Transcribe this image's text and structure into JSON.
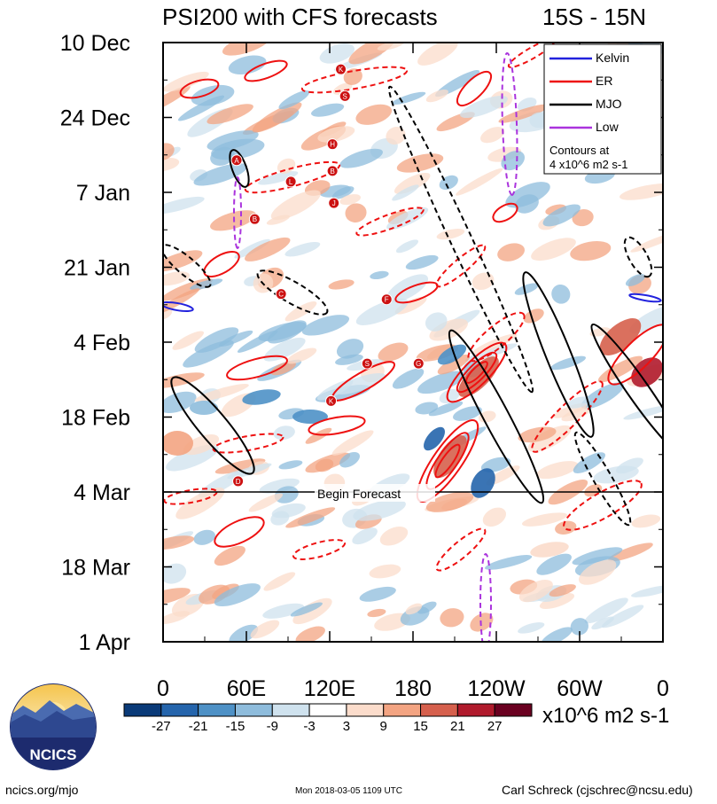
{
  "chart_data": {
    "type": "heatmap",
    "title": "PSI200 with CFS forecasts",
    "region": "15S - 15N",
    "x_ticks": [
      "0",
      "60E",
      "120E",
      "180",
      "120W",
      "60W",
      "0"
    ],
    "x_tick_values": [
      0,
      60,
      120,
      180,
      240,
      300,
      360
    ],
    "y_ticks": [
      "10 Dec",
      "24 Dec",
      "7 Jan",
      "21 Jan",
      "4 Feb",
      "18 Feb",
      "4 Mar",
      "18 Mar",
      "1 Apr"
    ],
    "y_range": [
      "10 Dec",
      "1 Apr"
    ],
    "forecast_line": {
      "label": "Begin Forecast",
      "date": "4 Mar"
    },
    "legend": {
      "placement": "top-right",
      "entries": [
        {
          "name": "Kelvin",
          "color": "#2222dd",
          "style": "solid"
        },
        {
          "name": "ER",
          "color": "#ee1111",
          "style": "solid"
        },
        {
          "name": "MJO",
          "color": "#000000",
          "style": "solid"
        },
        {
          "name": "Low",
          "color": "#aa33dd",
          "style": "solid"
        }
      ],
      "note_line1": "Contours at",
      "note_line2": "4 x10^6 m2 s-1"
    },
    "colorbar": {
      "labels": [
        "-27",
        "-21",
        "-15",
        "-9",
        "-3",
        "3",
        "9",
        "15",
        "21",
        "27"
      ],
      "colors": [
        "#0a3a78",
        "#2565ac",
        "#4e91c6",
        "#8ebcdc",
        "#cfe2ee",
        "#ffffff",
        "#fbdccb",
        "#f3a482",
        "#d6604d",
        "#b01a2c",
        "#6a0020"
      ],
      "units": "x10^6 m2 s-1"
    },
    "storm_markers": [
      {
        "lon": 53,
        "date": "1 Jan",
        "letter": "A"
      },
      {
        "lon": 66,
        "date": "12 Jan",
        "letter": "B"
      },
      {
        "lon": 92,
        "date": "5 Jan",
        "letter": "L"
      },
      {
        "lon": 122,
        "date": "3 Jan",
        "letter": "B"
      },
      {
        "lon": 122,
        "date": "29 Dec",
        "letter": "H"
      },
      {
        "lon": 128,
        "date": "15 Dec",
        "letter": "K"
      },
      {
        "lon": 131,
        "date": "20 Dec",
        "letter": "S"
      },
      {
        "lon": 123,
        "date": "9 Jan",
        "letter": "J"
      },
      {
        "lon": 85,
        "date": "26 Jan",
        "letter": "C"
      },
      {
        "lon": 161,
        "date": "27 Jan",
        "letter": "F"
      },
      {
        "lon": 147,
        "date": "8 Feb",
        "letter": "S"
      },
      {
        "lon": 184,
        "date": "8 Feb",
        "letter": "G"
      },
      {
        "lon": 121,
        "date": "15 Feb",
        "letter": "K"
      },
      {
        "lon": 54,
        "date": "2 Mar",
        "letter": "D"
      }
    ]
  },
  "logo": {
    "text": "NCICS"
  },
  "footer": {
    "left": "ncics.org/mjo",
    "center": "Mon 2018-03-05 1109 UTC",
    "right": "Carl Schreck (cjschrec@ncsu.edu)"
  }
}
